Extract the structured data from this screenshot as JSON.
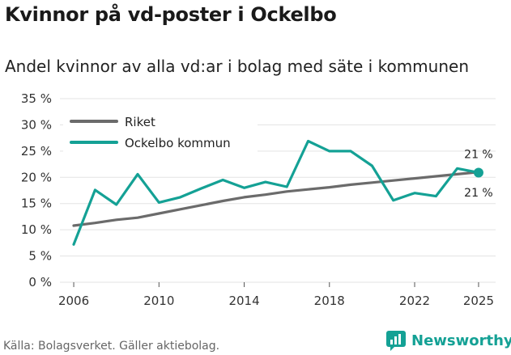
{
  "header": {
    "title": "Kvinnor på vd-poster i Ockelbo",
    "subtitle": "Andel kvinnor av alla vd:ar i bolag med säte i kommunen"
  },
  "footer": {
    "source": "Källa: Bolagsverket. Gäller aktiebolag.",
    "brand": "Newsworthy"
  },
  "colors": {
    "riket": "#6b6b6b",
    "ockelbo": "#14a195",
    "grid": "#e3e3e3"
  },
  "chart_data": {
    "type": "line",
    "title": "Kvinnor på vd-poster i Ockelbo",
    "subtitle": "Andel kvinnor av alla vd:ar i bolag med säte i kommunen",
    "xlabel": "",
    "ylabel": "",
    "x": [
      2006,
      2007,
      2008,
      2009,
      2010,
      2011,
      2012,
      2013,
      2014,
      2015,
      2016,
      2017,
      2018,
      2019,
      2020,
      2021,
      2022,
      2023,
      2024,
      2025
    ],
    "xticks": [
      2006,
      2010,
      2014,
      2018,
      2022,
      2025
    ],
    "yticks": [
      0,
      5,
      10,
      15,
      20,
      25,
      30,
      35
    ],
    "ytick_labels": [
      "0 %",
      "5 %",
      "10 %",
      "15 %",
      "20 %",
      "25 %",
      "30 %",
      "35 %"
    ],
    "ylim": [
      0,
      35
    ],
    "xlim": [
      2005.2,
      2025.8
    ],
    "grid": true,
    "legend_position": "top-left",
    "series": [
      {
        "name": "Riket",
        "key": "riket",
        "values": [
          10.8,
          11.3,
          11.9,
          12.3,
          13.1,
          13.9,
          14.7,
          15.5,
          16.2,
          16.7,
          17.3,
          17.7,
          18.1,
          18.6,
          19.0,
          19.4,
          19.8,
          20.2,
          20.6,
          21.0
        ]
      },
      {
        "name": "Ockelbo kommun",
        "key": "ockelbo",
        "values": [
          7.2,
          17.6,
          14.8,
          20.6,
          15.2,
          16.2,
          17.9,
          19.5,
          18.0,
          19.1,
          18.2,
          26.9,
          25.0,
          25.0,
          22.2,
          15.6,
          17.0,
          16.4,
          21.7,
          20.9
        ]
      }
    ],
    "end_labels": [
      {
        "series": "Ockelbo kommun",
        "text": "21 %"
      },
      {
        "series": "Riket",
        "text": "21 %"
      }
    ]
  }
}
